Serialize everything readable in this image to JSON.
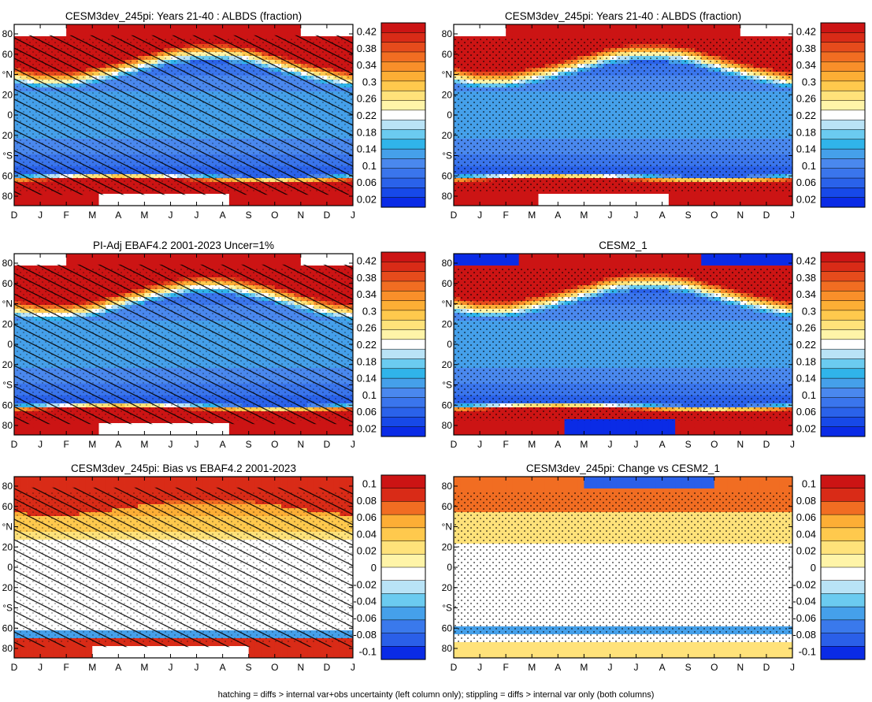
{
  "months": [
    "D",
    "J",
    "F",
    "M",
    "A",
    "M",
    "J",
    "J",
    "A",
    "S",
    "O",
    "N",
    "D",
    "J"
  ],
  "lat_ticks": [
    "80",
    "60",
    "°N",
    "20",
    "0",
    "20",
    "°S",
    "60",
    "80"
  ],
  "caption": "hatching = diffs > internal var+obs uncertainty (left column only); stippling = diffs > internal var only (both columns)",
  "colors": {
    "abs_scale": [
      "#0a2be6",
      "#1749e8",
      "#2a62ea",
      "#3a75ec",
      "#4a88ee",
      "#45a0ea",
      "#30b4ea",
      "#6bcbf0",
      "#b9e3f6",
      "#ffffff",
      "#fff4a8",
      "#ffe27a",
      "#ffc94d",
      "#fdae35",
      "#f98f2a",
      "#f16d22",
      "#e64b1c",
      "#d92b17",
      "#cc1414"
    ],
    "diff_scale": [
      "#0a2be6",
      "#2a5fe8",
      "#3a79ec",
      "#45a0ea",
      "#6bcbf0",
      "#b9e3f6",
      "#ffffff",
      "#fff4a8",
      "#ffe27a",
      "#ffc94d",
      "#fdae35",
      "#f16d22",
      "#d92b17",
      "#cc1414"
    ]
  },
  "chart_data": [
    {
      "type": "heatmap",
      "panel": "a",
      "title": "CESM3dev_245pi: Years 21-40 : ALBDS (fraction)",
      "colorbar": [
        "0.42",
        "0.38",
        "0.34",
        "0.3",
        "0.26",
        "0.22",
        "0.18",
        "0.14",
        "0.1",
        "0.06",
        "0.02"
      ],
      "field": "albedo",
      "variant": "model",
      "hatched": true,
      "stippled": true
    },
    {
      "type": "heatmap",
      "panel": "b",
      "title": "CESM3dev_245pi: Years 21-40 : ALBDS (fraction)",
      "colorbar": [
        "0.42",
        "0.38",
        "0.34",
        "0.3",
        "0.26",
        "0.22",
        "0.18",
        "0.14",
        "0.1",
        "0.06",
        "0.02"
      ],
      "field": "albedo",
      "variant": "model",
      "hatched": false,
      "stippled": true
    },
    {
      "type": "heatmap",
      "panel": "c",
      "title": "PI-Adj EBAF4.2 2001-2023 Uncer=1%",
      "colorbar": [
        "0.42",
        "0.38",
        "0.34",
        "0.3",
        "0.26",
        "0.22",
        "0.18",
        "0.14",
        "0.1",
        "0.06",
        "0.02"
      ],
      "field": "albedo",
      "variant": "obs",
      "hatched": true,
      "stippled": true
    },
    {
      "type": "heatmap",
      "panel": "d",
      "title": "CESM2_1",
      "colorbar": [
        "0.42",
        "0.38",
        "0.34",
        "0.3",
        "0.26",
        "0.22",
        "0.18",
        "0.14",
        "0.1",
        "0.06",
        "0.02"
      ],
      "field": "albedo",
      "variant": "cesm2",
      "hatched": false,
      "stippled": true
    },
    {
      "type": "heatmap",
      "panel": "e",
      "title": "CESM3dev_245pi: Bias vs EBAF4.2 2001-2023",
      "colorbar": [
        "0.1",
        "0.08",
        "0.06",
        "0.04",
        "0.02",
        "0",
        "-0.02",
        "-0.04",
        "-0.06",
        "-0.08",
        "-0.1"
      ],
      "field": "bias",
      "variant": "bias",
      "hatched": true,
      "stippled": true
    },
    {
      "type": "heatmap",
      "panel": "f",
      "title": "CESM3dev_245pi: Change vs CESM2_1",
      "colorbar": [
        "0.1",
        "0.08",
        "0.06",
        "0.04",
        "0.02",
        "0",
        "-0.02",
        "-0.04",
        "-0.06",
        "-0.08",
        "-0.1"
      ],
      "field": "change",
      "variant": "change",
      "hatched": false,
      "stippled": true
    }
  ]
}
